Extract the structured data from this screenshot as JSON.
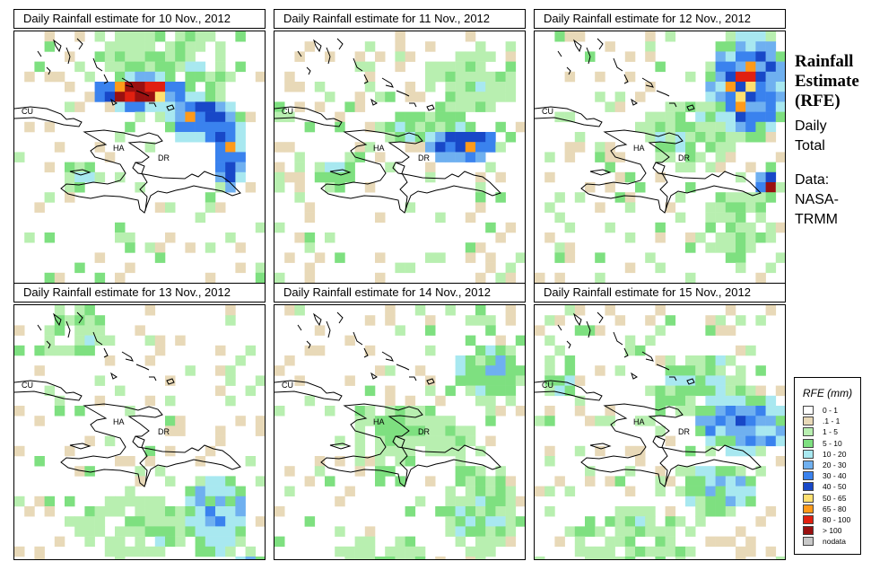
{
  "panels": [
    {
      "title": "Daily Rainfall estimate for  10 Nov., 2012",
      "seed": 11,
      "rain": [
        [
          0.5,
          0.23,
          0.2,
          0.07,
          5.0
        ],
        [
          0.74,
          0.33,
          0.16,
          0.1,
          3.6
        ],
        [
          0.85,
          0.45,
          0.07,
          0.18,
          3.8
        ],
        [
          0.26,
          0.55,
          0.08,
          0.05,
          1.5
        ],
        [
          0.6,
          0.15,
          0.25,
          0.2,
          1.0
        ]
      ]
    },
    {
      "title": "Daily Rainfall estimate for  11 Nov., 2012",
      "seed": 23,
      "rain": [
        [
          0.75,
          0.43,
          0.15,
          0.07,
          4.2
        ],
        [
          0.6,
          0.36,
          0.2,
          0.07,
          1.6
        ],
        [
          0.78,
          0.2,
          0.2,
          0.12,
          0.8
        ],
        [
          0.25,
          0.55,
          0.1,
          0.05,
          1.2
        ]
      ]
    },
    {
      "title": "Daily Rainfall estimate for  12 Nov., 2012",
      "seed": 37,
      "rain": [
        [
          0.85,
          0.2,
          0.16,
          0.22,
          3.8
        ],
        [
          0.93,
          0.58,
          0.05,
          0.06,
          4.4
        ],
        [
          0.62,
          0.4,
          0.18,
          0.14,
          1.2
        ],
        [
          0.8,
          0.75,
          0.15,
          0.15,
          0.7
        ]
      ]
    },
    {
      "title": "Daily Rainfall estimate for  13 Nov., 2012",
      "seed": 41,
      "rain": [
        [
          0.8,
          0.8,
          0.14,
          0.16,
          2.4
        ],
        [
          0.95,
          0.98,
          0.06,
          0.04,
          1.8
        ],
        [
          0.5,
          0.85,
          0.25,
          0.12,
          0.9
        ],
        [
          0.25,
          0.1,
          0.15,
          0.1,
          0.9
        ]
      ]
    },
    {
      "title": "Daily Rainfall estimate for  14 Nov., 2012",
      "seed": 53,
      "rain": [
        [
          0.85,
          0.25,
          0.14,
          0.12,
          1.7
        ],
        [
          0.82,
          0.78,
          0.14,
          0.18,
          1.4
        ],
        [
          0.55,
          0.5,
          0.25,
          0.12,
          0.8
        ],
        [
          0.45,
          0.95,
          0.2,
          0.06,
          0.7
        ]
      ]
    },
    {
      "title": "Daily Rainfall estimate for  15 Nov., 2012",
      "seed": 67,
      "rain": [
        [
          0.85,
          0.45,
          0.18,
          0.12,
          3.2
        ],
        [
          0.72,
          0.46,
          0.1,
          0.08,
          2.6
        ],
        [
          0.73,
          0.7,
          0.16,
          0.1,
          2.0
        ],
        [
          0.65,
          0.3,
          0.2,
          0.12,
          1.4
        ],
        [
          0.1,
          0.3,
          0.08,
          0.06,
          1.6
        ],
        [
          0.4,
          0.9,
          0.25,
          0.12,
          0.9
        ]
      ]
    }
  ],
  "map_labels": {
    "cu": "CU",
    "ha": "HA",
    "dr": "DR"
  },
  "side": {
    "title": "Rainfall Estimate (RFE)",
    "line1": "Daily",
    "line2": "Total",
    "line3": "Data:",
    "line4": "NASA-",
    "line5": "TRMM"
  },
  "legend": {
    "title": "RFE (mm)",
    "items": [
      {
        "label": "0 - 1",
        "color": "#ffffff"
      },
      {
        "label": ".1 - 1",
        "color": "#e8d9b8"
      },
      {
        "label": "1 - 5",
        "color": "#b8efb0"
      },
      {
        "label": "5 - 10",
        "color": "#7ee080"
      },
      {
        "label": "10 - 20",
        "color": "#a8e8f0"
      },
      {
        "label": "20 - 30",
        "color": "#6fb0f0"
      },
      {
        "label": "30 - 40",
        "color": "#3a82ee"
      },
      {
        "label": "40 - 50",
        "color": "#1848c8"
      },
      {
        "label": "50 - 65",
        "color": "#ffe070"
      },
      {
        "label": "65 - 80",
        "color": "#ff9a1a"
      },
      {
        "label": "80 - 100",
        "color": "#e02010"
      },
      {
        "label": "> 100",
        "color": "#9a1010"
      },
      {
        "label": "nodata",
        "color": "#c8c8c8"
      }
    ]
  }
}
